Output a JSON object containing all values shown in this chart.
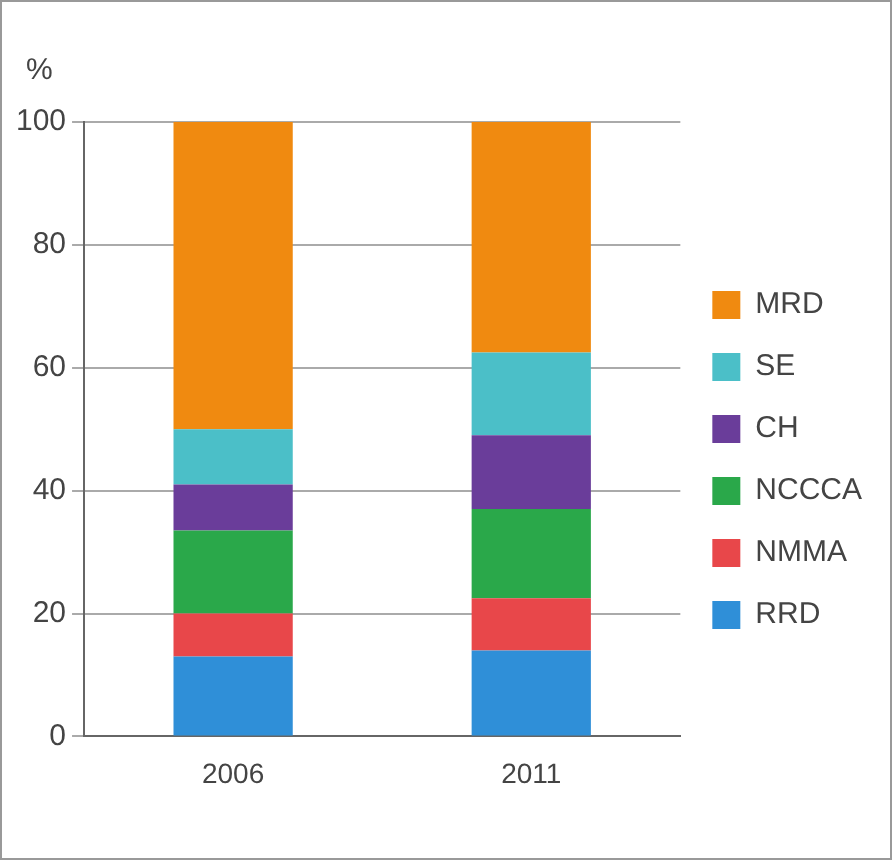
{
  "chart_data": {
    "type": "bar",
    "stacked": true,
    "ylabel": "%",
    "categories": [
      "2006",
      "2011"
    ],
    "series": [
      {
        "name": "RRD",
        "color": "#2f8fd8",
        "values": [
          13,
          14
        ]
      },
      {
        "name": "NMMA",
        "color": "#e8474a",
        "values": [
          7,
          8.5
        ]
      },
      {
        "name": "NCCCA",
        "color": "#2aa84a",
        "values": [
          13.5,
          14.5
        ]
      },
      {
        "name": "CH",
        "color": "#6a3d9a",
        "values": [
          7.5,
          12
        ]
      },
      {
        "name": "SE",
        "color": "#4bbfc8",
        "values": [
          9,
          13.5
        ]
      },
      {
        "name": "MRD",
        "color": "#f08a10",
        "values": [
          50,
          37.5
        ]
      }
    ],
    "ylim": [
      0,
      100
    ],
    "yticks": [
      0,
      20,
      40,
      60,
      80,
      100
    ],
    "grid": "y",
    "legend": "right"
  }
}
